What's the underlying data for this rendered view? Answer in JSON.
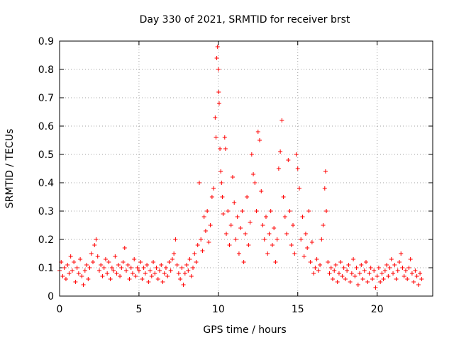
{
  "chart_data": {
    "type": "scatter",
    "title": "Day 330 of 2021, SRMTID for receiver brst",
    "xlabel": "GPS time / hours",
    "ylabel": "SRMTID / TECUs",
    "xlim": [
      0,
      23.5
    ],
    "ylim": [
      0,
      0.9
    ],
    "xticks": [
      0,
      5,
      10,
      15,
      20
    ],
    "xtick_labels": [
      "0",
      "5",
      "10",
      "15",
      "20"
    ],
    "yticks": [
      0,
      0.1,
      0.2,
      0.3,
      0.4,
      0.5,
      0.6,
      0.7,
      0.8,
      0.9
    ],
    "ytick_labels": [
      "0",
      "0.1",
      "0.2",
      "0.3",
      "0.4",
      "0.5",
      "0.6",
      "0.7",
      "0.8",
      "0.9"
    ],
    "grid": true,
    "marker": "+",
    "color": "#ff0000",
    "series": [
      {
        "name": "SRMTID",
        "points": [
          [
            0.0,
            0.09
          ],
          [
            0.1,
            0.12
          ],
          [
            0.2,
            0.07
          ],
          [
            0.3,
            0.1
          ],
          [
            0.4,
            0.06
          ],
          [
            0.5,
            0.11
          ],
          [
            0.6,
            0.08
          ],
          [
            0.7,
            0.14
          ],
          [
            0.8,
            0.09
          ],
          [
            0.9,
            0.12
          ],
          [
            1.0,
            0.05
          ],
          [
            1.1,
            0.1
          ],
          [
            1.2,
            0.08
          ],
          [
            1.3,
            0.13
          ],
          [
            1.4,
            0.07
          ],
          [
            1.5,
            0.04
          ],
          [
            1.6,
            0.09
          ],
          [
            1.7,
            0.11
          ],
          [
            1.8,
            0.06
          ],
          [
            1.9,
            0.1
          ],
          [
            2.0,
            0.15
          ],
          [
            2.1,
            0.12
          ],
          [
            2.2,
            0.18
          ],
          [
            2.3,
            0.2
          ],
          [
            2.4,
            0.14
          ],
          [
            2.5,
            0.09
          ],
          [
            2.6,
            0.11
          ],
          [
            2.7,
            0.07
          ],
          [
            2.8,
            0.1
          ],
          [
            2.9,
            0.13
          ],
          [
            3.0,
            0.08
          ],
          [
            3.1,
            0.12
          ],
          [
            3.2,
            0.06
          ],
          [
            3.3,
            0.1
          ],
          [
            3.4,
            0.09
          ],
          [
            3.5,
            0.14
          ],
          [
            3.6,
            0.08
          ],
          [
            3.7,
            0.11
          ],
          [
            3.8,
            0.07
          ],
          [
            3.9,
            0.1
          ],
          [
            4.0,
            0.12
          ],
          [
            4.1,
            0.17
          ],
          [
            4.2,
            0.09
          ],
          [
            4.3,
            0.11
          ],
          [
            4.4,
            0.06
          ],
          [
            4.5,
            0.1
          ],
          [
            4.6,
            0.08
          ],
          [
            4.7,
            0.13
          ],
          [
            4.8,
            0.07
          ],
          [
            4.9,
            0.1
          ],
          [
            5.0,
            0.09
          ],
          [
            5.1,
            0.12
          ],
          [
            5.2,
            0.06
          ],
          [
            5.3,
            0.1
          ],
          [
            5.4,
            0.08
          ],
          [
            5.5,
            0.11
          ],
          [
            5.6,
            0.05
          ],
          [
            5.7,
            0.09
          ],
          [
            5.8,
            0.07
          ],
          [
            5.9,
            0.12
          ],
          [
            6.0,
            0.08
          ],
          [
            6.1,
            0.1
          ],
          [
            6.2,
            0.06
          ],
          [
            6.3,
            0.09
          ],
          [
            6.4,
            0.11
          ],
          [
            6.5,
            0.05
          ],
          [
            6.6,
            0.08
          ],
          [
            6.7,
            0.1
          ],
          [
            6.8,
            0.07
          ],
          [
            6.9,
            0.12
          ],
          [
            7.0,
            0.09
          ],
          [
            7.1,
            0.13
          ],
          [
            7.2,
            0.15
          ],
          [
            7.3,
            0.2
          ],
          [
            7.4,
            0.11
          ],
          [
            7.5,
            0.08
          ],
          [
            7.6,
            0.06
          ],
          [
            7.7,
            0.1
          ],
          [
            7.8,
            0.04
          ],
          [
            7.9,
            0.08
          ],
          [
            8.0,
            0.11
          ],
          [
            8.1,
            0.09
          ],
          [
            8.2,
            0.13
          ],
          [
            8.3,
            0.07
          ],
          [
            8.4,
            0.1
          ],
          [
            8.5,
            0.15
          ],
          [
            8.6,
            0.12
          ],
          [
            8.7,
            0.18
          ],
          [
            8.8,
            0.4
          ],
          [
            8.9,
            0.2
          ],
          [
            9.0,
            0.16
          ],
          [
            9.1,
            0.28
          ],
          [
            9.2,
            0.23
          ],
          [
            9.3,
            0.3
          ],
          [
            9.4,
            0.19
          ],
          [
            9.5,
            0.25
          ],
          [
            9.6,
            0.35
          ],
          [
            9.7,
            0.38
          ],
          [
            9.8,
            0.63
          ],
          [
            9.85,
            0.56
          ],
          [
            9.9,
            0.84
          ],
          [
            9.95,
            0.88
          ],
          [
            10.0,
            0.8
          ],
          [
            10.02,
            0.72
          ],
          [
            10.05,
            0.68
          ],
          [
            10.1,
            0.52
          ],
          [
            10.15,
            0.44
          ],
          [
            10.2,
            0.4
          ],
          [
            10.25,
            0.35
          ],
          [
            10.3,
            0.29
          ],
          [
            10.4,
            0.56
          ],
          [
            10.45,
            0.52
          ],
          [
            10.5,
            0.22
          ],
          [
            10.6,
            0.3
          ],
          [
            10.7,
            0.18
          ],
          [
            10.8,
            0.25
          ],
          [
            10.9,
            0.42
          ],
          [
            11.0,
            0.33
          ],
          [
            11.1,
            0.2
          ],
          [
            11.2,
            0.28
          ],
          [
            11.3,
            0.15
          ],
          [
            11.4,
            0.24
          ],
          [
            11.5,
            0.3
          ],
          [
            11.6,
            0.12
          ],
          [
            11.7,
            0.22
          ],
          [
            11.8,
            0.35
          ],
          [
            11.9,
            0.18
          ],
          [
            12.0,
            0.26
          ],
          [
            12.1,
            0.5
          ],
          [
            12.2,
            0.43
          ],
          [
            12.3,
            0.4
          ],
          [
            12.4,
            0.3
          ],
          [
            12.5,
            0.58
          ],
          [
            12.6,
            0.55
          ],
          [
            12.7,
            0.37
          ],
          [
            12.8,
            0.25
          ],
          [
            12.9,
            0.2
          ],
          [
            13.0,
            0.28
          ],
          [
            13.1,
            0.15
          ],
          [
            13.2,
            0.22
          ],
          [
            13.3,
            0.3
          ],
          [
            13.4,
            0.18
          ],
          [
            13.5,
            0.24
          ],
          [
            13.6,
            0.12
          ],
          [
            13.7,
            0.2
          ],
          [
            13.8,
            0.45
          ],
          [
            13.9,
            0.51
          ],
          [
            14.0,
            0.62
          ],
          [
            14.1,
            0.35
          ],
          [
            14.2,
            0.28
          ],
          [
            14.3,
            0.22
          ],
          [
            14.4,
            0.48
          ],
          [
            14.5,
            0.3
          ],
          [
            14.6,
            0.18
          ],
          [
            14.7,
            0.25
          ],
          [
            14.8,
            0.15
          ],
          [
            14.9,
            0.5
          ],
          [
            15.0,
            0.45
          ],
          [
            15.1,
            0.38
          ],
          [
            15.2,
            0.2
          ],
          [
            15.3,
            0.28
          ],
          [
            15.4,
            0.14
          ],
          [
            15.5,
            0.22
          ],
          [
            15.6,
            0.17
          ],
          [
            15.7,
            0.3
          ],
          [
            15.8,
            0.12
          ],
          [
            15.9,
            0.19
          ],
          [
            16.0,
            0.08
          ],
          [
            16.1,
            0.1
          ],
          [
            16.2,
            0.13
          ],
          [
            16.3,
            0.09
          ],
          [
            16.4,
            0.11
          ],
          [
            16.5,
            0.2
          ],
          [
            16.6,
            0.25
          ],
          [
            16.7,
            0.38
          ],
          [
            16.75,
            0.44
          ],
          [
            16.8,
            0.3
          ],
          [
            16.9,
            0.12
          ],
          [
            17.0,
            0.08
          ],
          [
            17.1,
            0.1
          ],
          [
            17.2,
            0.06
          ],
          [
            17.3,
            0.09
          ],
          [
            17.4,
            0.11
          ],
          [
            17.5,
            0.05
          ],
          [
            17.6,
            0.08
          ],
          [
            17.7,
            0.12
          ],
          [
            17.8,
            0.07
          ],
          [
            17.9,
            0.1
          ],
          [
            18.0,
            0.06
          ],
          [
            18.1,
            0.09
          ],
          [
            18.2,
            0.11
          ],
          [
            18.3,
            0.05
          ],
          [
            18.4,
            0.08
          ],
          [
            18.5,
            0.13
          ],
          [
            18.6,
            0.07
          ],
          [
            18.7,
            0.1
          ],
          [
            18.8,
            0.04
          ],
          [
            18.9,
            0.08
          ],
          [
            19.0,
            0.11
          ],
          [
            19.1,
            0.06
          ],
          [
            19.2,
            0.09
          ],
          [
            19.3,
            0.12
          ],
          [
            19.4,
            0.05
          ],
          [
            19.5,
            0.08
          ],
          [
            19.6,
            0.1
          ],
          [
            19.7,
            0.06
          ],
          [
            19.8,
            0.09
          ],
          [
            19.9,
            0.03
          ],
          [
            20.0,
            0.07
          ],
          [
            20.1,
            0.1
          ],
          [
            20.2,
            0.05
          ],
          [
            20.3,
            0.08
          ],
          [
            20.4,
            0.06
          ],
          [
            20.5,
            0.09
          ],
          [
            20.6,
            0.11
          ],
          [
            20.7,
            0.07
          ],
          [
            20.8,
            0.1
          ],
          [
            20.9,
            0.13
          ],
          [
            21.0,
            0.08
          ],
          [
            21.1,
            0.11
          ],
          [
            21.2,
            0.06
          ],
          [
            21.3,
            0.09
          ],
          [
            21.4,
            0.12
          ],
          [
            21.5,
            0.15
          ],
          [
            21.6,
            0.1
          ],
          [
            21.7,
            0.07
          ],
          [
            21.8,
            0.09
          ],
          [
            21.9,
            0.06
          ],
          [
            22.0,
            0.1
          ],
          [
            22.1,
            0.13
          ],
          [
            22.2,
            0.08
          ],
          [
            22.3,
            0.05
          ],
          [
            22.4,
            0.09
          ],
          [
            22.5,
            0.07
          ],
          [
            22.6,
            0.04
          ],
          [
            22.7,
            0.08
          ],
          [
            22.8,
            0.06
          ]
        ]
      }
    ]
  }
}
